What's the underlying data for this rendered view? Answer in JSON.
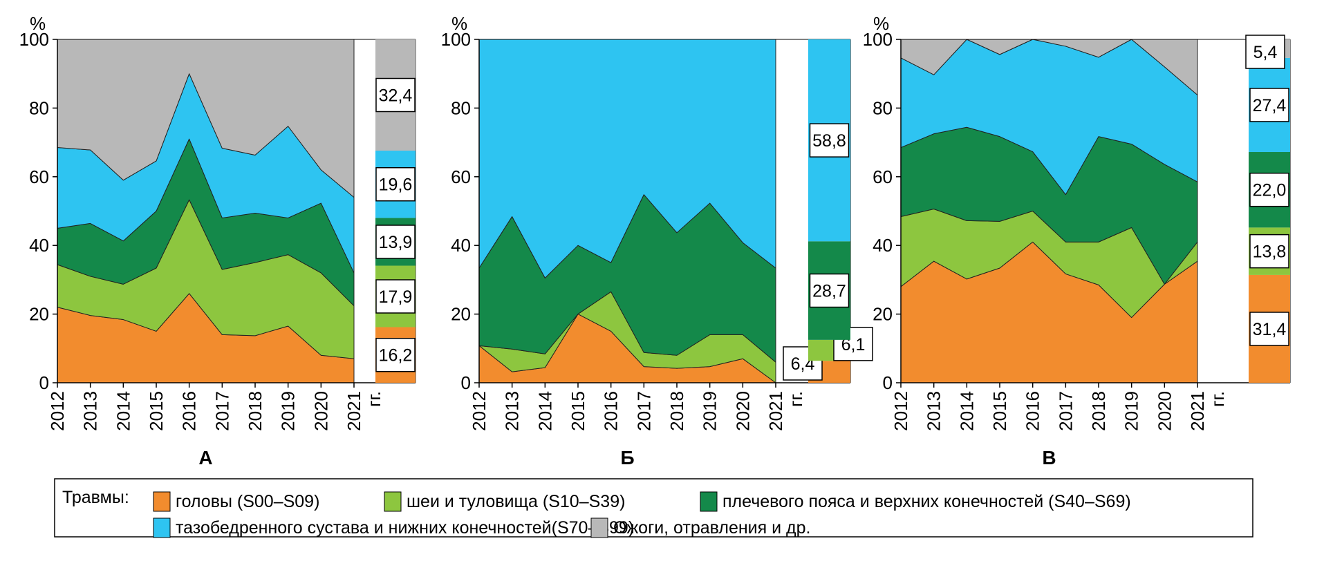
{
  "colors": {
    "head": "#F28C2E",
    "neck": "#8DC63F",
    "shoulder": "#14894A",
    "hip": "#2EC4F1",
    "burns": "#B8B8B8"
  },
  "legend": {
    "title": "Травмы:",
    "items": [
      {
        "key": "head",
        "label": "головы (S00–S09)"
      },
      {
        "key": "neck",
        "label": "шеи и туловища (S10–S39)"
      },
      {
        "key": "shoulder",
        "label": "плечевого пояса и верхних конечностей (S40–S69)"
      },
      {
        "key": "hip",
        "label": "тазобедренного сустава и нижних конечностей(S70–S99)"
      },
      {
        "key": "burns",
        "label": "Ожоги, отравления и др."
      }
    ]
  },
  "chart_data": [
    {
      "type": "area",
      "stacked": true,
      "title": "А",
      "ylabel": "%",
      "xlabel_suffix": "гг.",
      "ylim": [
        0,
        100
      ],
      "yticks": [
        "0",
        "20",
        "40",
        "60",
        "80",
        "100"
      ],
      "categories": [
        "2012",
        "2013",
        "2014",
        "2015",
        "2016",
        "2017",
        "2018",
        "2019",
        "2020",
        "2021"
      ],
      "series": [
        {
          "key": "head",
          "values": [
            22,
            19.6,
            18.4,
            15,
            26,
            14,
            13.7,
            16.5,
            8,
            7
          ]
        },
        {
          "key": "neck",
          "values": [
            12.4,
            11.4,
            10.3,
            18.4,
            27.3,
            19,
            21.3,
            20.8,
            24,
            15.4
          ]
        },
        {
          "key": "shoulder",
          "values": [
            10.6,
            15.4,
            12.6,
            16.6,
            17.7,
            15,
            14.4,
            10.7,
            20.3,
            9.6
          ]
        },
        {
          "key": "hip",
          "values": [
            23.5,
            21.4,
            17.7,
            14.6,
            19,
            20.3,
            16.9,
            26.7,
            9.7,
            22
          ]
        },
        {
          "key": "burns",
          "values": [
            31.5,
            32.2,
            41,
            35.4,
            10,
            31.7,
            33.7,
            25.3,
            38,
            46
          ]
        }
      ],
      "summary": [
        {
          "key": "head",
          "value": 16.2,
          "label": "16,2"
        },
        {
          "key": "neck",
          "value": 17.9,
          "label": "17,9"
        },
        {
          "key": "shoulder",
          "value": 13.9,
          "label": "13,9"
        },
        {
          "key": "hip",
          "value": 19.6,
          "label": "19,6"
        },
        {
          "key": "burns",
          "value": 32.4,
          "label": "32,4"
        }
      ]
    },
    {
      "type": "area",
      "stacked": true,
      "title": "Б",
      "ylabel": "%",
      "xlabel_suffix": "гг.",
      "ylim": [
        0,
        100
      ],
      "yticks": [
        "0",
        "20",
        "40",
        "60",
        "80",
        "100"
      ],
      "categories": [
        "2012",
        "2013",
        "2014",
        "2015",
        "2016",
        "2017",
        "2018",
        "2019",
        "2020",
        "2021"
      ],
      "series": [
        {
          "key": "head",
          "values": [
            10.8,
            3.2,
            4.4,
            20,
            15,
            4.7,
            4.2,
            4.7,
            7,
            0
          ]
        },
        {
          "key": "neck",
          "values": [
            0,
            6.6,
            4,
            0,
            11.5,
            4.1,
            3.8,
            9.3,
            7,
            6
          ]
        },
        {
          "key": "shoulder",
          "values": [
            22.6,
            38.6,
            22.1,
            20,
            8.5,
            46,
            35.7,
            38.3,
            26.8,
            27.4
          ]
        },
        {
          "key": "hip",
          "values": [
            66.6,
            51.6,
            69.5,
            60,
            65,
            45.2,
            56.3,
            47.7,
            59.2,
            66.6
          ]
        }
      ],
      "summary": [
        {
          "key": "head",
          "value": 6.4,
          "label": "6,4"
        },
        {
          "key": "neck",
          "value": 6.1,
          "label": "6,1"
        },
        {
          "key": "shoulder",
          "value": 28.7,
          "label": "28,7"
        },
        {
          "key": "hip",
          "value": 58.8,
          "label": "58,8"
        }
      ]
    },
    {
      "type": "area",
      "stacked": true,
      "title": "В",
      "ylabel": "%",
      "xlabel_suffix": "гг.",
      "ylim": [
        0,
        100
      ],
      "yticks": [
        "0",
        "20",
        "40",
        "60",
        "80",
        "100"
      ],
      "categories": [
        "2012",
        "2013",
        "2014",
        "2015",
        "2016",
        "2017",
        "2018",
        "2019",
        "2020",
        "2021"
      ],
      "series": [
        {
          "key": "head",
          "values": [
            28,
            35.4,
            30.2,
            33.4,
            41,
            31.7,
            28.5,
            19,
            28.7,
            35.4
          ]
        },
        {
          "key": "neck",
          "values": [
            20.4,
            15.2,
            17,
            13.6,
            9,
            9.3,
            12.5,
            26.2,
            0,
            5.6
          ]
        },
        {
          "key": "shoulder",
          "values": [
            20.1,
            21.9,
            27.2,
            24.7,
            17.3,
            13.8,
            30.7,
            24.3,
            34.9,
            17.5
          ]
        },
        {
          "key": "hip",
          "values": [
            26.1,
            17.2,
            25.6,
            23.9,
            32.7,
            43.2,
            23.1,
            30.5,
            28.4,
            25.3
          ]
        },
        {
          "key": "burns",
          "values": [
            5.4,
            10.3,
            0,
            4.4,
            0,
            2,
            5.2,
            0,
            8,
            16.2
          ]
        }
      ],
      "summary": [
        {
          "key": "head",
          "value": 31.4,
          "label": "31,4"
        },
        {
          "key": "neck",
          "value": 13.8,
          "label": "13,8"
        },
        {
          "key": "shoulder",
          "value": 22.0,
          "label": "22,0"
        },
        {
          "key": "hip",
          "value": 27.4,
          "label": "27,4"
        },
        {
          "key": "burns",
          "value": 5.4,
          "label": "5,4"
        }
      ]
    }
  ]
}
